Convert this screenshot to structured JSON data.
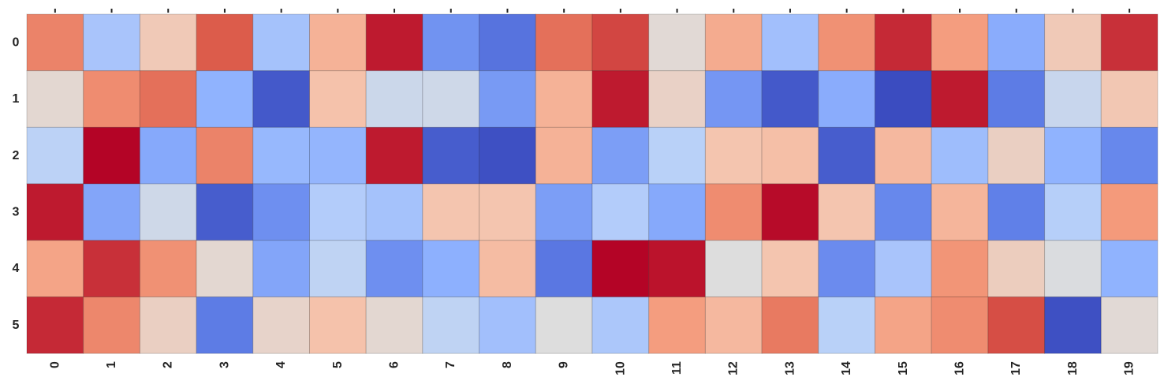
{
  "chart_data": {
    "type": "heatmap",
    "title": "",
    "xlabel": "",
    "ylabel": "",
    "x_categories": [
      "0",
      "1",
      "2",
      "3",
      "4",
      "5",
      "6",
      "7",
      "8",
      "9",
      "10",
      "11",
      "12",
      "13",
      "14",
      "15",
      "16",
      "17",
      "18",
      "19"
    ],
    "y_categories": [
      "0",
      "1",
      "2",
      "3",
      "4",
      "5"
    ],
    "colormap": "coolwarm",
    "value_range": [
      0,
      1
    ],
    "colorbar": false,
    "grid": false,
    "values": [
      [
        0.8,
        0.33,
        0.6,
        0.88,
        0.32,
        0.68,
        0.97,
        0.17,
        0.09,
        0.84,
        0.91,
        0.52,
        0.7,
        0.31,
        0.77,
        0.95,
        0.74,
        0.24,
        0.6,
        0.94
      ],
      [
        0.53,
        0.78,
        0.84,
        0.26,
        0.03,
        0.63,
        0.44,
        0.45,
        0.19,
        0.68,
        0.97,
        0.56,
        0.18,
        0.03,
        0.24,
        0.0,
        0.97,
        0.11,
        0.43,
        0.61
      ],
      [
        0.39,
        1.0,
        0.23,
        0.8,
        0.28,
        0.27,
        0.97,
        0.04,
        0.01,
        0.68,
        0.2,
        0.38,
        0.62,
        0.64,
        0.04,
        0.66,
        0.3,
        0.57,
        0.26,
        0.14
      ],
      [
        0.97,
        0.22,
        0.45,
        0.04,
        0.16,
        0.36,
        0.32,
        0.62,
        0.62,
        0.2,
        0.36,
        0.23,
        0.78,
        0.99,
        0.62,
        0.14,
        0.67,
        0.12,
        0.37,
        0.75
      ],
      [
        0.72,
        0.94,
        0.77,
        0.53,
        0.22,
        0.4,
        0.16,
        0.25,
        0.65,
        0.1,
        1.0,
        0.98,
        0.5,
        0.62,
        0.15,
        0.33,
        0.76,
        0.58,
        0.49,
        0.26
      ],
      [
        0.95,
        0.79,
        0.57,
        0.11,
        0.55,
        0.63,
        0.53,
        0.4,
        0.31,
        0.5,
        0.34,
        0.74,
        0.66,
        0.82,
        0.38,
        0.72,
        0.78,
        0.9,
        0.01,
        0.52
      ]
    ]
  }
}
